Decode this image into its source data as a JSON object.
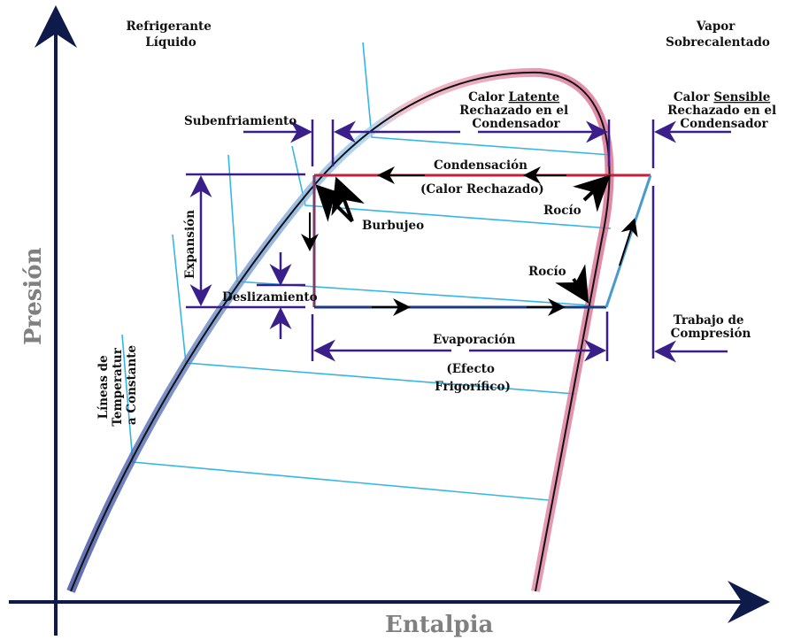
{
  "axes": {
    "y_label": "Presión",
    "x_label": "Entalpia"
  },
  "regions": {
    "liquid": [
      "Refrigerante",
      "Líquido"
    ],
    "vapor": [
      "Vapor",
      "Sobrecalentado"
    ]
  },
  "labels": {
    "subenfriamiento": "Subenfriamiento",
    "latent": {
      "line1_pre": "Calor ",
      "line1_u": "Latente",
      "line2": "Rechazado en el",
      "line3": "Condensador"
    },
    "sensible": {
      "line1_pre": "Calor ",
      "line1_u": "Sensible",
      "line2": "Rechazado en el",
      "line3": "Condensador"
    },
    "condensacion": "Condensación",
    "calor_rechazado": "(Calor Rechazado)",
    "rocio_top": "Rocío",
    "burbujeo": "Burbujeo",
    "expansion": "Expansión",
    "deslizamiento": "Deslizamiento",
    "rocio_bottom": "Rocío",
    "trabajo": [
      "Trabajo de",
      "Compresión"
    ],
    "evaporacion": "Evaporación",
    "efecto": [
      "(Efecto",
      "Frigorífico)"
    ],
    "isotermas": [
      "Líneas de",
      "Temperatur",
      "a Constante"
    ]
  },
  "colors": {
    "axis": "#0d1a4a",
    "dimension": "#3a1f8a",
    "isotherm": "#35b6e8",
    "liquid_line": "#2a3a8a",
    "vapor_line": "#e07a9a",
    "condensing": "#c0203a",
    "evaporating": "#1a5aa0"
  }
}
